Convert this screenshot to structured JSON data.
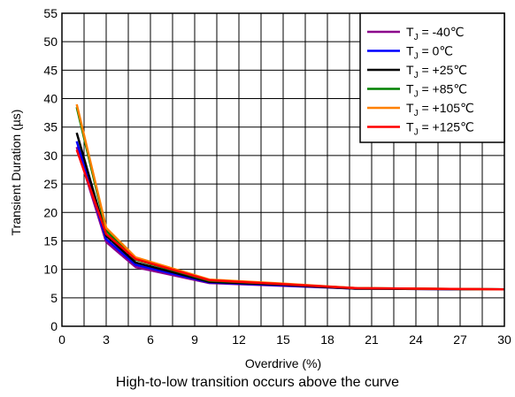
{
  "chart_data": {
    "type": "line",
    "xlabel": "Overdrive (%)",
    "ylabel": "Transient Duration (µs)",
    "xlim": [
      0,
      30
    ],
    "ylim": [
      0,
      55
    ],
    "x_ticks": [
      "0",
      "3",
      "6",
      "9",
      "12",
      "15",
      "18",
      "21",
      "24",
      "27",
      "30"
    ],
    "y_ticks": [
      "0",
      "5",
      "10",
      "15",
      "20",
      "25",
      "30",
      "35",
      "40",
      "45",
      "50",
      "55"
    ],
    "grid": true,
    "legend_position": "top-right",
    "series": [
      {
        "name": "T J = -40℃",
        "sub": "J",
        "label": "T",
        "suffix": " = -40℃",
        "color": "#8B008B",
        "x": [
          1,
          3,
          5,
          10,
          15,
          20,
          30
        ],
        "y": [
          31.5,
          14.8,
          10.4,
          7.6,
          7.1,
          6.6,
          6.5
        ]
      },
      {
        "name": "T J = 0℃",
        "sub": "J",
        "label": "T",
        "suffix": " = 0℃",
        "color": "#0000FF",
        "x": [
          1,
          3,
          5,
          10,
          15,
          20,
          30
        ],
        "y": [
          32.5,
          15.3,
          10.8,
          7.7,
          7.2,
          6.6,
          6.5
        ]
      },
      {
        "name": "T J = +25℃",
        "sub": "J",
        "label": "T",
        "suffix": " = +25℃",
        "color": "#000000",
        "x": [
          1,
          3,
          5,
          10,
          15,
          20,
          30
        ],
        "y": [
          34.0,
          15.9,
          11.2,
          7.8,
          7.3,
          6.6,
          6.5
        ]
      },
      {
        "name": "T J = +85℃",
        "sub": "J",
        "label": "T",
        "suffix": " = +85℃",
        "color": "#008000",
        "x": [
          1,
          3,
          5,
          10,
          15,
          20,
          30
        ],
        "y": [
          38.5,
          16.8,
          11.7,
          8.0,
          7.4,
          6.7,
          6.5
        ]
      },
      {
        "name": "T J = +105℃",
        "sub": "J",
        "label": "T",
        "suffix": " = +105℃",
        "color": "#FF8000",
        "x": [
          1,
          3,
          5,
          10,
          15,
          20,
          30
        ],
        "y": [
          39.0,
          17.3,
          12.1,
          8.2,
          7.5,
          6.7,
          6.5
        ]
      },
      {
        "name": "T J = +125℃",
        "sub": "J",
        "label": "T",
        "suffix": " = +125℃",
        "color": "#FF0000",
        "x": [
          1,
          3,
          5,
          10,
          15,
          20,
          30
        ],
        "y": [
          31.0,
          16.2,
          11.8,
          8.1,
          7.4,
          6.7,
          6.5
        ]
      }
    ]
  },
  "caption": "High-to-low transition occurs above the curve"
}
